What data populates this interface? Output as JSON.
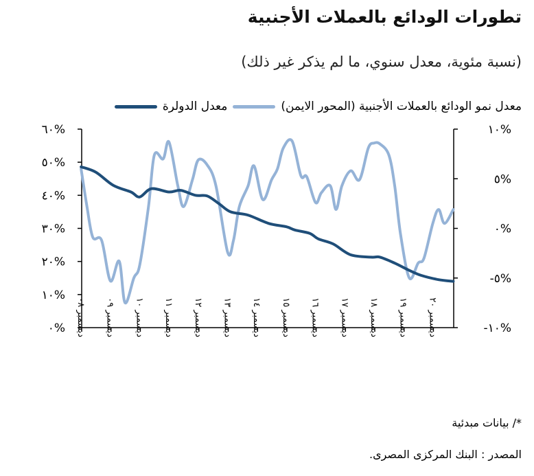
{
  "title": "تطورات الودائع بالعملات الأجنبية",
  "subtitle": "(نسبة مئوية، معدل سنوي، ما لم يذكر غير ذلك)",
  "footnote": "*/ بيانات مبدئية",
  "source": "المصدر : البنك المركزى المصرى.",
  "chart_data": {
    "type": "line",
    "legend_position": "top",
    "grid": false,
    "left_axis": {
      "range": [
        0,
        60
      ],
      "ticks": [
        "٠%",
        "١٠%",
        "٢٠%",
        "٣٠%",
        "٤٠%",
        "٥٠%",
        "٦٠%"
      ],
      "tick_values": [
        0,
        10,
        20,
        30,
        40,
        50,
        60
      ]
    },
    "right_axis": {
      "range": [
        -10,
        10
      ],
      "ticks": [
        "-١٠%",
        "-٥%",
        "٠%",
        "٥%",
        "١٠%"
      ],
      "tick_values": [
        -10,
        -5,
        0,
        5,
        10
      ]
    },
    "x_ticks": [
      "ديسمبر ٠٨",
      "ديسمبر ٠٩",
      "ديسمبر ١٠",
      "ديسمبر ١١",
      "ديسمبر ١٢",
      "ديسمبر ١٣",
      "ديسمبر ١٤",
      "ديسمبر ١٥",
      "ديسمبر ١٦",
      "ديسمبر ١٧",
      "ديسمبر ١٨",
      "ديسمبر ١٩",
      "ديسمبر ٢٠"
    ],
    "x_tick_values": [
      2008.92,
      2009.92,
      2010.92,
      2011.92,
      2012.92,
      2013.92,
      2014.92,
      2015.92,
      2016.92,
      2017.92,
      2018.92,
      2019.92,
      2020.92
    ],
    "series": [
      {
        "name": "معدل نمو الودائع بالعملات الأجنبية (المحور الايمن)",
        "axis": "right",
        "color": "#95B3D7",
        "x": [
          2008.9,
          2009.1,
          2009.3,
          2009.6,
          2009.9,
          2010.2,
          2010.4,
          2010.7,
          2010.9,
          2011.2,
          2011.4,
          2011.7,
          2011.9,
          2012.2,
          2012.4,
          2012.7,
          2012.9,
          2013.2,
          2013.5,
          2013.9,
          2014.1,
          2014.3,
          2014.6,
          2014.8,
          2015.1,
          2015.4,
          2015.6,
          2015.8,
          2016.1,
          2016.4,
          2016.6,
          2016.9,
          2017.1,
          2017.4,
          2017.6,
          2017.8,
          2018.1,
          2018.4,
          2018.7,
          2018.9,
          2019.1,
          2019.4,
          2019.6,
          2019.8,
          2020.1,
          2020.4,
          2020.6,
          2020.9,
          2021.1,
          2021.3,
          2021.6
        ],
        "y": [
          6,
          2.2,
          -0.9,
          -1.2,
          -5.3,
          -3.3,
          -7.5,
          -5,
          -3.7,
          2.2,
          7.4,
          7,
          8.7,
          4.3,
          2.2,
          4.9,
          6.9,
          6.4,
          4.3,
          -2.4,
          -1.2,
          2.2,
          4.3,
          6.3,
          2.9,
          4.9,
          6,
          8.1,
          8.8,
          5.3,
          5.2,
          2.6,
          3.6,
          4.3,
          1.9,
          4.3,
          5.8,
          4.9,
          8.1,
          8.6,
          8.5,
          7.4,
          4.3,
          -0.6,
          -5,
          -3.5,
          -3,
          0.5,
          1.9,
          0.5,
          1.9
        ]
      },
      {
        "name": "معدل الدولرة",
        "axis": "left",
        "color": "#1F4E79",
        "x": [
          2008.9,
          2009.4,
          2010.0,
          2010.6,
          2010.9,
          2011.3,
          2011.9,
          2012.3,
          2012.8,
          2013.2,
          2013.6,
          2014.0,
          2014.6,
          2015.3,
          2015.9,
          2016.2,
          2016.7,
          2017.0,
          2017.5,
          2018.1,
          2018.8,
          2019.1,
          2019.6,
          2020.1,
          2020.5,
          2021.1,
          2021.6
        ],
        "y": [
          48.6,
          47,
          43,
          41,
          39.5,
          42,
          41,
          41.5,
          40,
          39.8,
          37.5,
          35,
          34,
          31.5,
          30.5,
          29.5,
          28.5,
          26.8,
          25.3,
          22,
          21.3,
          21.3,
          19.5,
          17.3,
          15.8,
          14.5,
          14
        ]
      }
    ]
  }
}
